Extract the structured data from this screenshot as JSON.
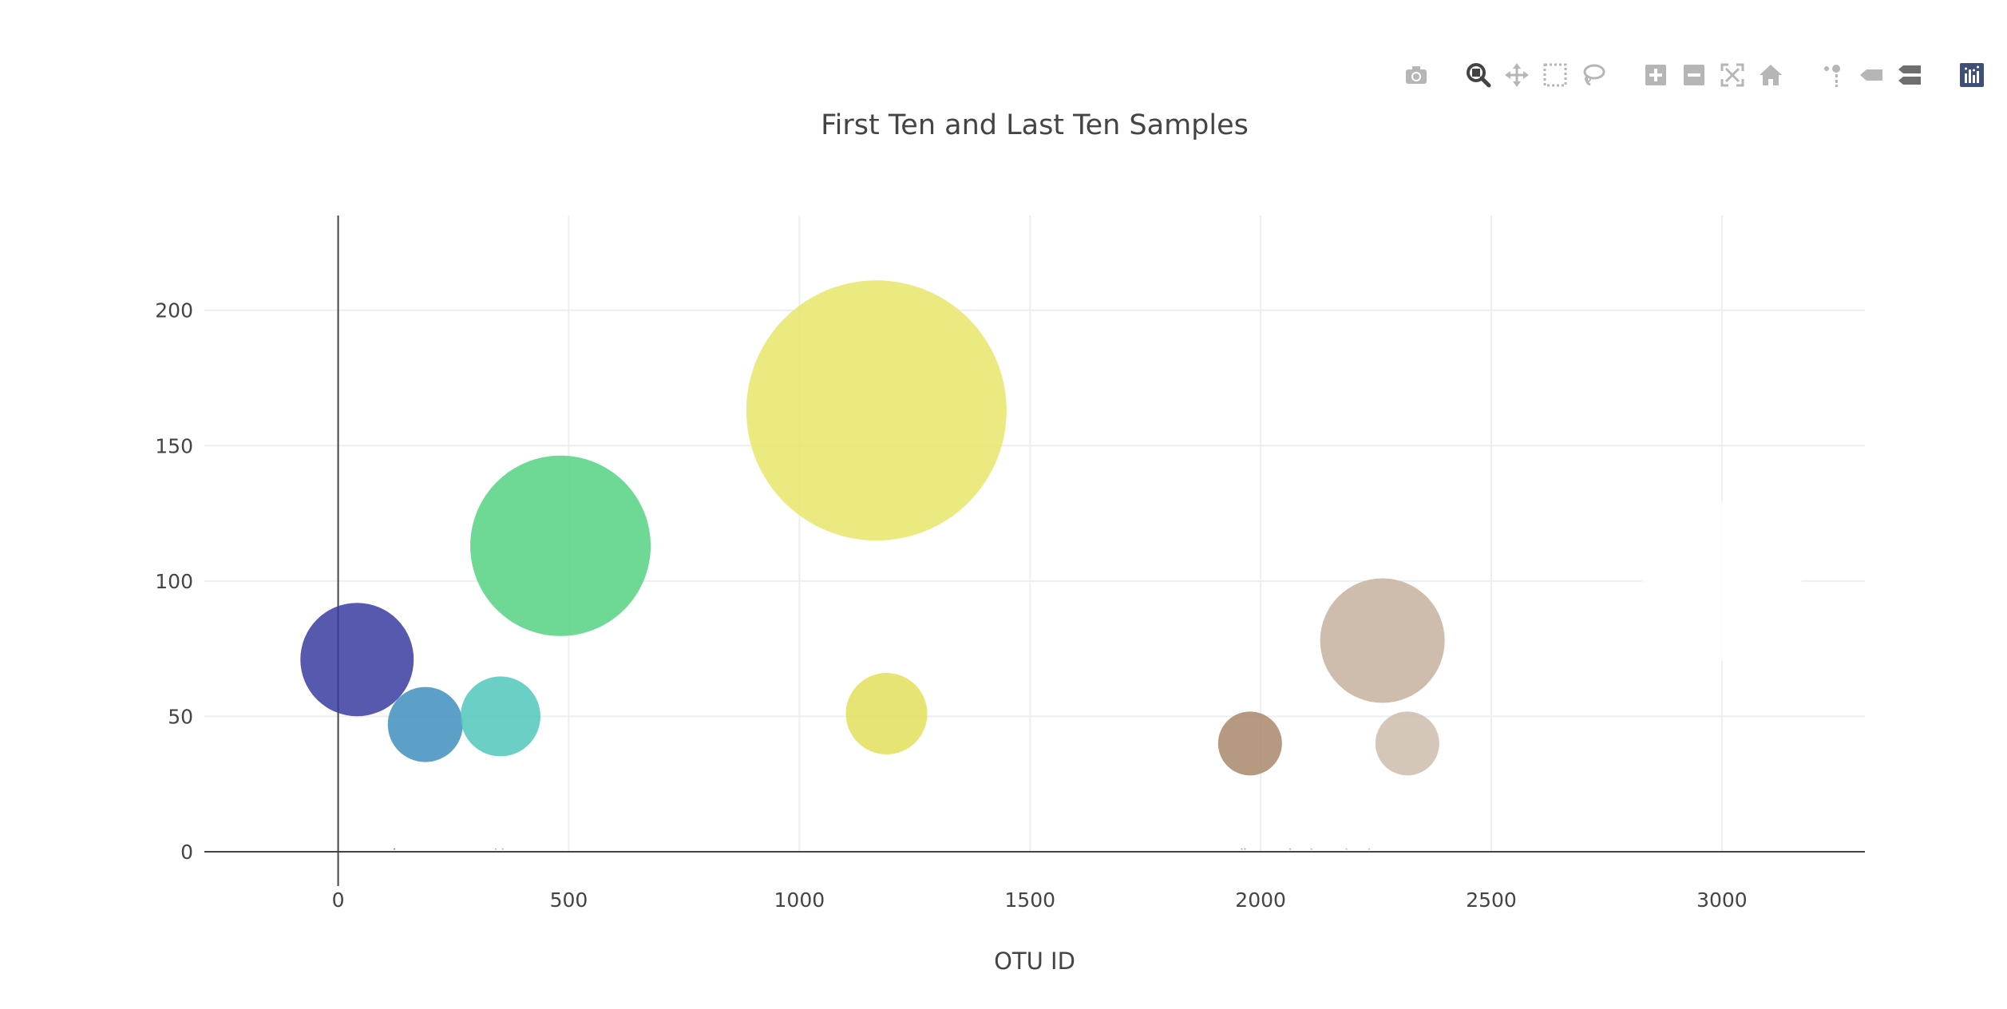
{
  "chart_data": {
    "type": "scatter",
    "title": "First Ten and Last Ten Samples",
    "xlabel": "OTU ID",
    "ylabel": "",
    "xlim": [
      -290,
      3310
    ],
    "ylim": [
      0,
      235
    ],
    "x_ticks": [
      0,
      500,
      1000,
      1500,
      2000,
      2500,
      3000
    ],
    "y_ticks": [
      0,
      50,
      100,
      150,
      200
    ],
    "grid": true,
    "legend": "none",
    "points": [
      {
        "x": 41,
        "y": 71,
        "size": 71,
        "color": "#3a3ca0"
      },
      {
        "x": 189,
        "y": 47,
        "size": 47,
        "color": "#3f8ebd"
      },
      {
        "x": 352,
        "y": 50,
        "size": 50,
        "color": "#50c8bc"
      },
      {
        "x": 482,
        "y": 113,
        "size": 113,
        "color": "#55d282"
      },
      {
        "x": 1167,
        "y": 163,
        "size": 163,
        "color": "#e8e66a"
      },
      {
        "x": 1189,
        "y": 51,
        "size": 51,
        "color": "#e2e05a"
      },
      {
        "x": 1977,
        "y": 40,
        "size": 40,
        "color": "#a8876a"
      },
      {
        "x": 2264,
        "y": 78,
        "size": 78,
        "color": "#c6b29e"
      },
      {
        "x": 2318,
        "y": 40,
        "size": 40,
        "color": "#cdbcad"
      },
      {
        "x": 122,
        "y": 1,
        "size": 1,
        "color": "#3a6cae"
      },
      {
        "x": 342,
        "y": 1,
        "size": 1,
        "color": "#50c0bc"
      },
      {
        "x": 357,
        "y": 1,
        "size": 1,
        "color": "#50c8b0"
      },
      {
        "x": 1959,
        "y": 1,
        "size": 1,
        "color": "#a8876a"
      },
      {
        "x": 1966,
        "y": 1,
        "size": 1,
        "color": "#a8876a"
      },
      {
        "x": 2064,
        "y": 1,
        "size": 1,
        "color": "#b09a86"
      },
      {
        "x": 2110,
        "y": 1,
        "size": 1,
        "color": "#b5a08c"
      },
      {
        "x": 2186,
        "y": 1,
        "size": 1,
        "color": "#bca893"
      },
      {
        "x": 2235,
        "y": 1,
        "size": 1,
        "color": "#c2ad99"
      },
      {
        "x": 3000,
        "y": 100,
        "size": 100,
        "color": "#ffffff"
      }
    ]
  },
  "modebar": {
    "buttons": [
      {
        "icon": "camera-icon",
        "group": 1,
        "active": false
      },
      {
        "icon": "zoom-icon",
        "group": 2,
        "active": true
      },
      {
        "icon": "pan-icon",
        "group": 2,
        "active": false
      },
      {
        "icon": "box-select-icon",
        "group": 2,
        "active": false
      },
      {
        "icon": "lasso-select-icon",
        "group": 2,
        "active": false
      },
      {
        "icon": "zoom-in-icon",
        "group": 3,
        "active": false
      },
      {
        "icon": "zoom-out-icon",
        "group": 3,
        "active": false
      },
      {
        "icon": "autoscale-icon",
        "group": 3,
        "active": false
      },
      {
        "icon": "reset-axes-icon",
        "group": 3,
        "active": false
      },
      {
        "icon": "spike-lines-icon",
        "group": 4,
        "active": false
      },
      {
        "icon": "hover-closest-icon",
        "group": 4,
        "active": false
      },
      {
        "icon": "hover-compare-icon",
        "group": 4,
        "active": false
      },
      {
        "icon": "plotly-logo-icon",
        "group": 5,
        "active": false
      }
    ],
    "colors": {
      "inactive": "#b6b6b6",
      "active": "#444444",
      "logo": "#3f4f75"
    }
  }
}
